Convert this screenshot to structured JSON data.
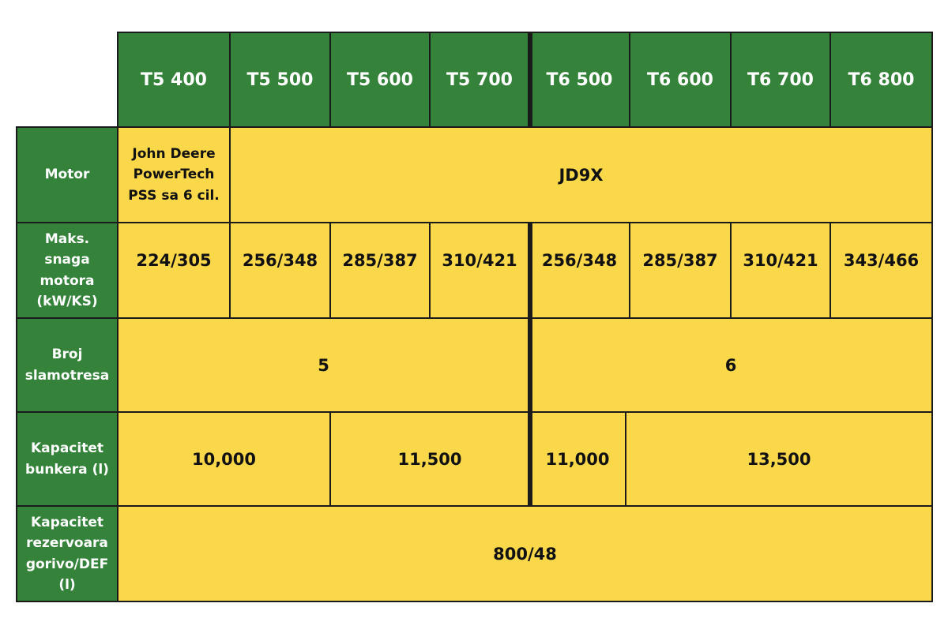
{
  "columns": [
    "T5 400",
    "T5 500",
    "T5 600",
    "T5 700",
    "T6 500",
    "T6 600",
    "T6 700",
    "T6 800"
  ],
  "rows": {
    "motor": {
      "label": "Motor",
      "t5_400": "John Deere PowerTech PSS sa 6 cil.",
      "others": "JD9X"
    },
    "power": {
      "label": "Maks. snaga motora (kW/KS)",
      "values": [
        "224/305",
        "256/348",
        "285/387",
        "310/421",
        "256/348",
        "285/387",
        "310/421",
        "343/466"
      ]
    },
    "walkers": {
      "label": "Broj slamotresa",
      "t5": "5",
      "t6": "6"
    },
    "tank": {
      "label": "Kapacitet bunkera (l)",
      "values": [
        "10,000",
        "11,500",
        "11,000",
        "13,500"
      ]
    },
    "fuel": {
      "label": "Kapacitet rezervoara gorivo/DEF (l)",
      "value": "800/48"
    }
  }
}
